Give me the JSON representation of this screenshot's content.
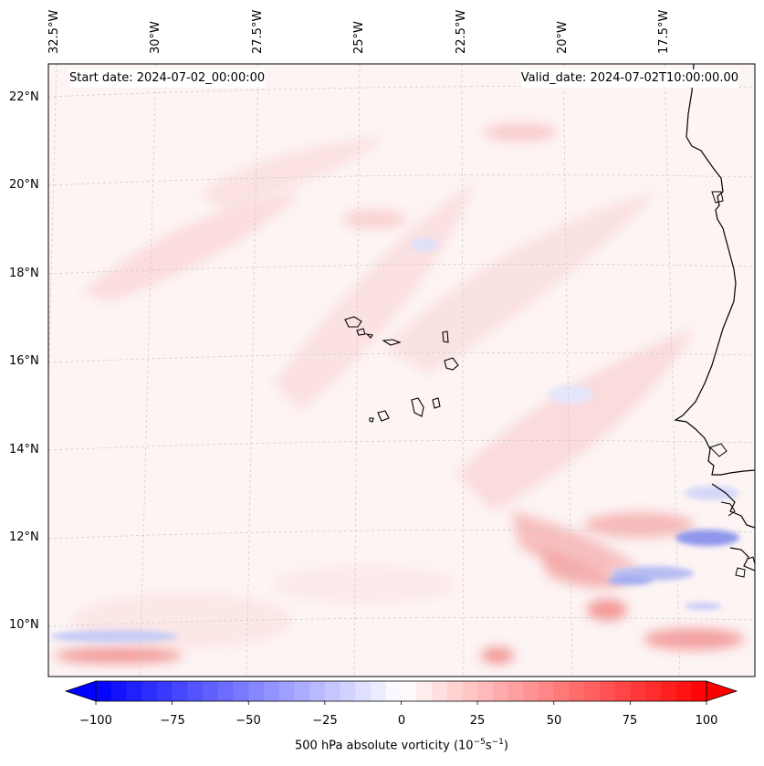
{
  "map": {
    "start_date": "Start date: 2024-07-02_00:00:00",
    "valid_date": "Valid_date: 2024-07-02T10:00:00.00",
    "longitude_labels": [
      "32.5°W",
      "30°W",
      "27.5°W",
      "25°W",
      "22.5°W",
      "20°W",
      "17.5°W"
    ],
    "latitude_labels": [
      "22°N",
      "20°N",
      "18°N",
      "16°N",
      "14°N",
      "12°N",
      "10°N"
    ],
    "field": "500 hPa absolute vorticity",
    "units": "10^-5 s^-1"
  },
  "colorbar": {
    "ticks": [
      "−100",
      "−75",
      "−50",
      "−25",
      "0",
      "25",
      "50",
      "75",
      "100"
    ],
    "label_text": "500 hPa absolute vorticity (10",
    "label_exp1": "−5",
    "label_mid": "s",
    "label_exp2": "−1",
    "label_end": ")",
    "min": -100,
    "max": 100,
    "neg_color": "#0000ff",
    "pos_color": "#ff0000",
    "mid_color": "#ffffff"
  }
}
